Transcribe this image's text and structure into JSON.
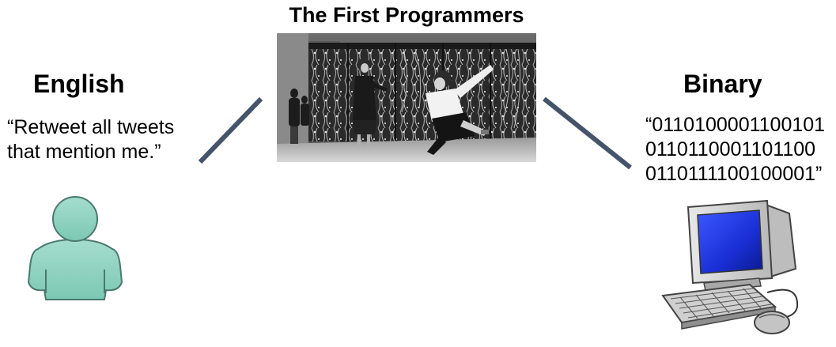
{
  "title": "The First Programmers",
  "english": {
    "heading": "English",
    "quote_lines": [
      "“Retweet all tweets",
      "that mention me.”"
    ]
  },
  "binary": {
    "heading": "Binary",
    "quote_lines": [
      "“0110100001100101",
      "0110110001101100",
      "0110111100100001”"
    ]
  },
  "colors": {
    "connector": "#44546a",
    "person_fill": "#8fd3c1",
    "person_stroke": "#4a7a6e",
    "screen": "#1a2fd6",
    "computer_body": "#d4d4d4"
  },
  "icons": {
    "person": "person-icon",
    "computer": "computer-icon",
    "photo": "eniac-programmers-photo"
  }
}
